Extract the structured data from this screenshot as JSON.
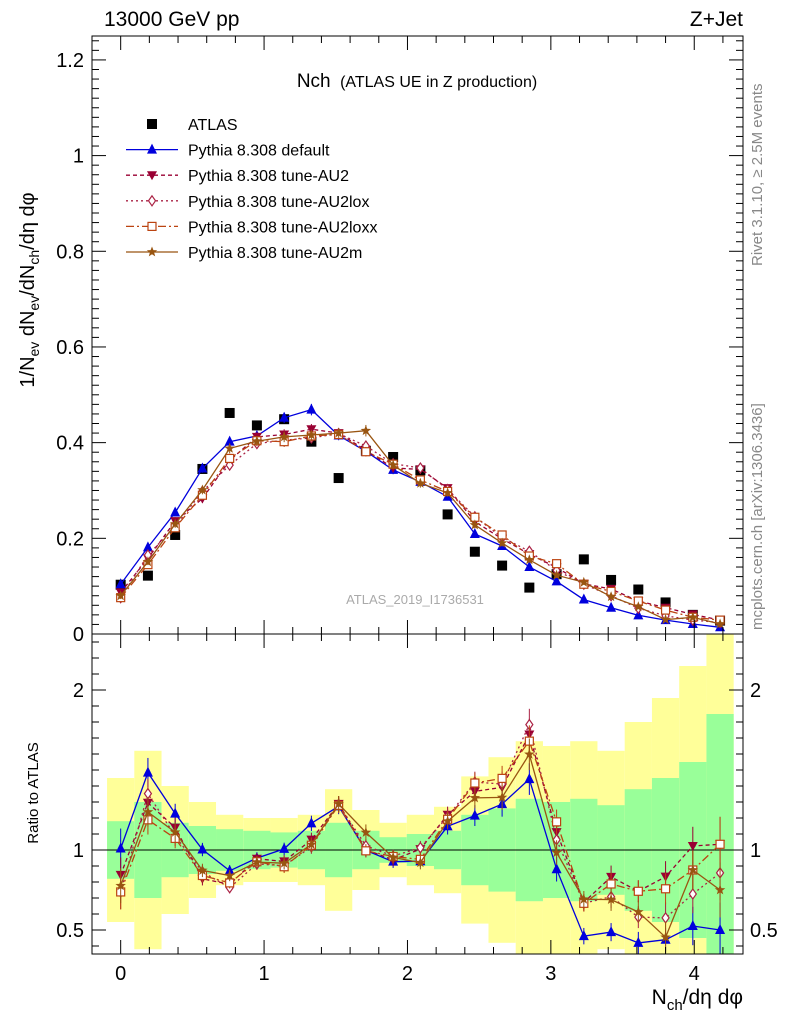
{
  "header": {
    "left": "13000 GeV pp",
    "right": "Z+Jet"
  },
  "side_text": {
    "rivet": "Rivet 3.1.10, ≥ 2.5M events",
    "mcplots": "mcplots.cern.ch [arXiv:1306.3436]"
  },
  "chart_data": {
    "type": "scatter",
    "title_main": "Nch",
    "title_sub": "(ATLAS UE in Z production)",
    "watermark": "ATLAS_2019_I1736531",
    "xlabel": "N_ch/dη dφ",
    "ylabel_main": "1/N_ev dN_ev/dN_ch/dη dφ",
    "ylabel_ratio": "Ratio to ATLAS",
    "xlim": [
      -0.2,
      4.34
    ],
    "ylim_main": [
      0,
      1.25
    ],
    "ylim_ratio": [
      0.35,
      2.35
    ],
    "xticks": [
      "0",
      "1",
      "2",
      "3",
      "4"
    ],
    "yticks_main": [
      "0",
      "0.2",
      "0.4",
      "0.6",
      "0.8",
      "1",
      "1.2"
    ],
    "yticks_ratio": [
      "0.5",
      "1",
      "2"
    ],
    "legend_position": "top-left",
    "x": [
      0.0,
      0.19,
      0.38,
      0.57,
      0.76,
      0.95,
      1.14,
      1.33,
      1.52,
      1.71,
      1.9,
      2.09,
      2.28,
      2.47,
      2.66,
      2.85,
      3.04,
      3.23,
      3.42,
      3.61,
      3.8,
      3.99,
      4.18
    ],
    "data": {
      "name": "ATLAS",
      "values": [
        0.103,
        0.122,
        0.207,
        0.345,
        0.462,
        0.436,
        0.449,
        0.402,
        0.326,
        0.383,
        0.37,
        0.342,
        0.25,
        0.172,
        0.143,
        0.097,
        0.125,
        0.156,
        0.113,
        0.093,
        0.066,
        0.04,
        0.028
      ],
      "band_inner": [
        0.18,
        0.3,
        0.17,
        0.15,
        0.13,
        0.12,
        0.11,
        0.12,
        0.17,
        0.12,
        0.08,
        0.1,
        0.12,
        0.22,
        0.26,
        0.32,
        0.3,
        0.32,
        0.28,
        0.38,
        0.45,
        0.55,
        0.85
      ],
      "band_outer": [
        0.45,
        0.62,
        0.4,
        0.3,
        0.22,
        0.2,
        0.2,
        0.22,
        0.38,
        0.25,
        0.17,
        0.22,
        0.27,
        0.46,
        0.58,
        0.68,
        0.65,
        0.68,
        0.62,
        0.8,
        0.95,
        1.15,
        1.5
      ],
      "color": "#000000"
    },
    "series": [
      {
        "name": "Pythia 8.308 default",
        "color": "#0000dd",
        "dash": "",
        "marker": "triangle-up",
        "values": [
          0.104,
          0.181,
          0.254,
          0.346,
          0.402,
          0.414,
          0.452,
          0.469,
          0.415,
          0.382,
          0.343,
          0.318,
          0.287,
          0.209,
          0.184,
          0.14,
          0.11,
          0.072,
          0.055,
          0.039,
          0.029,
          0.021,
          0.014
        ],
        "errors": [
          0.008,
          0.007,
          0.008,
          0.009,
          0.01,
          0.01,
          0.011,
          0.012,
          0.01,
          0.01,
          0.009,
          0.008,
          0.008,
          0.007,
          0.007,
          0.006,
          0.006,
          0.005,
          0.004,
          0.004,
          0.003,
          0.003,
          0.003
        ]
      },
      {
        "name": "Pythia 8.308 tune-AU2",
        "color": "#990033",
        "dash": "4,3",
        "marker": "triangle-down",
        "values": [
          0.087,
          0.158,
          0.236,
          0.283,
          0.363,
          0.412,
          0.417,
          0.428,
          0.42,
          0.384,
          0.347,
          0.344,
          0.305,
          0.235,
          0.199,
          0.167,
          0.139,
          0.105,
          0.094,
          0.069,
          0.055,
          0.041,
          0.029
        ],
        "errors": [
          0.007,
          0.007,
          0.008,
          0.009,
          0.01,
          0.01,
          0.011,
          0.011,
          0.01,
          0.01,
          0.009,
          0.009,
          0.008,
          0.007,
          0.007,
          0.006,
          0.006,
          0.005,
          0.005,
          0.004,
          0.004,
          0.003,
          0.003
        ]
      },
      {
        "name": "Pythia 8.308 tune-AU2lox",
        "color": "#aa2244",
        "dash": "2,3",
        "marker": "diamond-open",
        "values": [
          0.076,
          0.165,
          0.225,
          0.298,
          0.353,
          0.398,
          0.405,
          0.41,
          0.419,
          0.393,
          0.356,
          0.347,
          0.302,
          0.245,
          0.202,
          0.173,
          0.133,
          0.104,
          0.08,
          0.054,
          0.038,
          0.029,
          0.024
        ],
        "errors": [
          0.007,
          0.007,
          0.008,
          0.009,
          0.01,
          0.01,
          0.011,
          0.011,
          0.01,
          0.01,
          0.009,
          0.009,
          0.008,
          0.007,
          0.007,
          0.006,
          0.006,
          0.005,
          0.005,
          0.004,
          0.004,
          0.003,
          0.003
        ]
      },
      {
        "name": "Pythia 8.308 tune-AU2loxx",
        "color": "#bb4411",
        "dash": "8,3,2,3",
        "marker": "square-open",
        "values": [
          0.076,
          0.145,
          0.222,
          0.29,
          0.367,
          0.404,
          0.402,
          0.414,
          0.417,
          0.381,
          0.355,
          0.322,
          0.298,
          0.244,
          0.207,
          0.163,
          0.147,
          0.104,
          0.089,
          0.069,
          0.05,
          0.035,
          0.029
        ],
        "errors": [
          0.007,
          0.007,
          0.008,
          0.009,
          0.01,
          0.01,
          0.011,
          0.011,
          0.01,
          0.01,
          0.009,
          0.009,
          0.008,
          0.007,
          0.007,
          0.006,
          0.006,
          0.005,
          0.005,
          0.004,
          0.004,
          0.003,
          0.003
        ]
      },
      {
        "name": "Pythia 8.308 tune-AU2m",
        "color": "#995511",
        "dash": "",
        "marker": "star",
        "values": [
          0.08,
          0.151,
          0.23,
          0.301,
          0.388,
          0.403,
          0.412,
          0.416,
          0.42,
          0.425,
          0.353,
          0.315,
          0.295,
          0.228,
          0.19,
          0.155,
          0.123,
          0.108,
          0.078,
          0.057,
          0.03,
          0.035,
          0.021
        ],
        "errors": [
          0.007,
          0.007,
          0.008,
          0.009,
          0.01,
          0.01,
          0.011,
          0.011,
          0.01,
          0.012,
          0.009,
          0.009,
          0.008,
          0.007,
          0.007,
          0.006,
          0.006,
          0.005,
          0.005,
          0.004,
          0.004,
          0.003,
          0.003
        ]
      }
    ]
  }
}
